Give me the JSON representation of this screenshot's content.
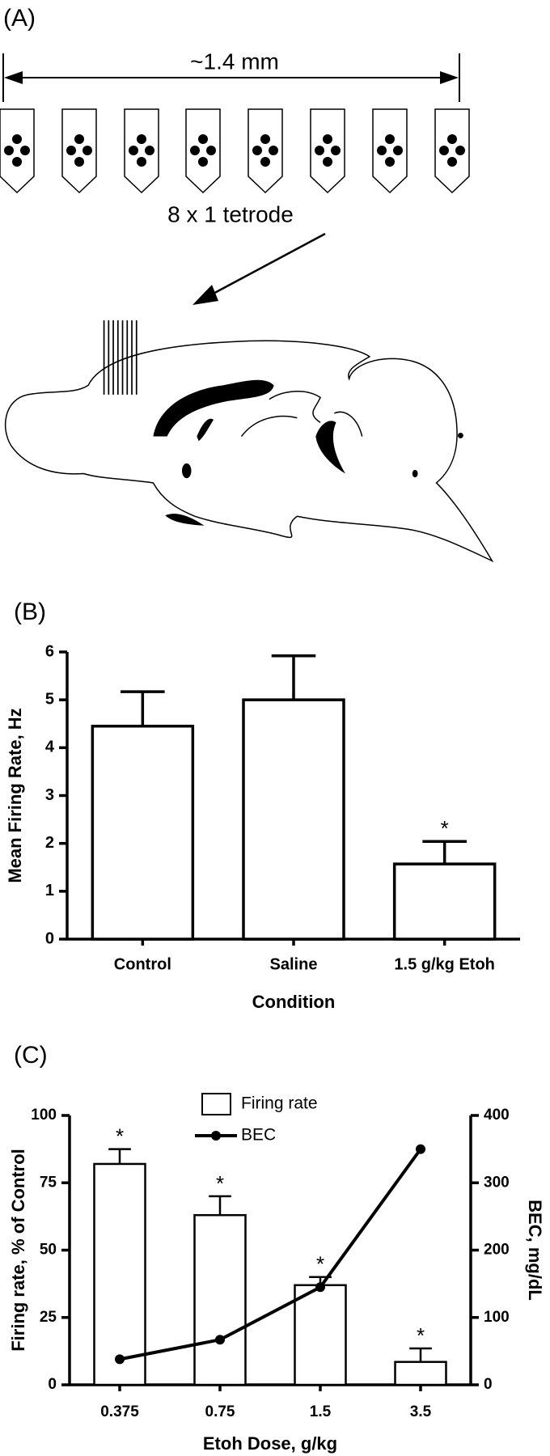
{
  "panel_a": {
    "label": "(A)",
    "scale_label": "~1.4 mm",
    "caption": "8 x 1 tetrode"
  },
  "chart_data": [
    {
      "type": "bar",
      "panel_label": "(B)",
      "categories": [
        "Control",
        "Saline",
        "1.5 g/kg Etoh"
      ],
      "values": [
        4.45,
        5.0,
        1.57
      ],
      "errors": [
        0.72,
        0.92,
        0.47
      ],
      "significance": [
        null,
        null,
        "*"
      ],
      "color": "#ffffff",
      "edge_color": "#000000",
      "ylabel": "Mean Firing Rate, Hz",
      "xlabel": "Condition",
      "ylim": [
        0,
        6
      ],
      "yticks": [
        0,
        1,
        2,
        3,
        4,
        5,
        6
      ],
      "grid": false
    },
    {
      "type": "bar_line",
      "panel_label": "(C)",
      "categories": [
        "0.375",
        "0.75",
        "1.5",
        "3.5"
      ],
      "series": [
        {
          "name": "Firing rate",
          "type": "bar",
          "color": "#ffffff",
          "edge_color": "#000000",
          "values": [
            82,
            63,
            37,
            8.5
          ],
          "errors": [
            5.5,
            7,
            3,
            5
          ],
          "significance": [
            "*",
            "*",
            "*",
            "*"
          ]
        },
        {
          "name": "BEC",
          "type": "line",
          "axis": "y2",
          "color": "#000000",
          "values": [
            38,
            67,
            145,
            350
          ]
        }
      ],
      "ylabel": "Firing rate, % of Control",
      "y2label": "BEC, mg/dL",
      "xlabel": "Etoh Dose, g/kg",
      "ylim": [
        0,
        100
      ],
      "yticks": [
        0,
        25,
        50,
        75,
        100
      ],
      "y2lim": [
        0,
        400
      ],
      "y2ticks": [
        0,
        100,
        200,
        300,
        400
      ],
      "grid": false,
      "legend": "top"
    }
  ]
}
